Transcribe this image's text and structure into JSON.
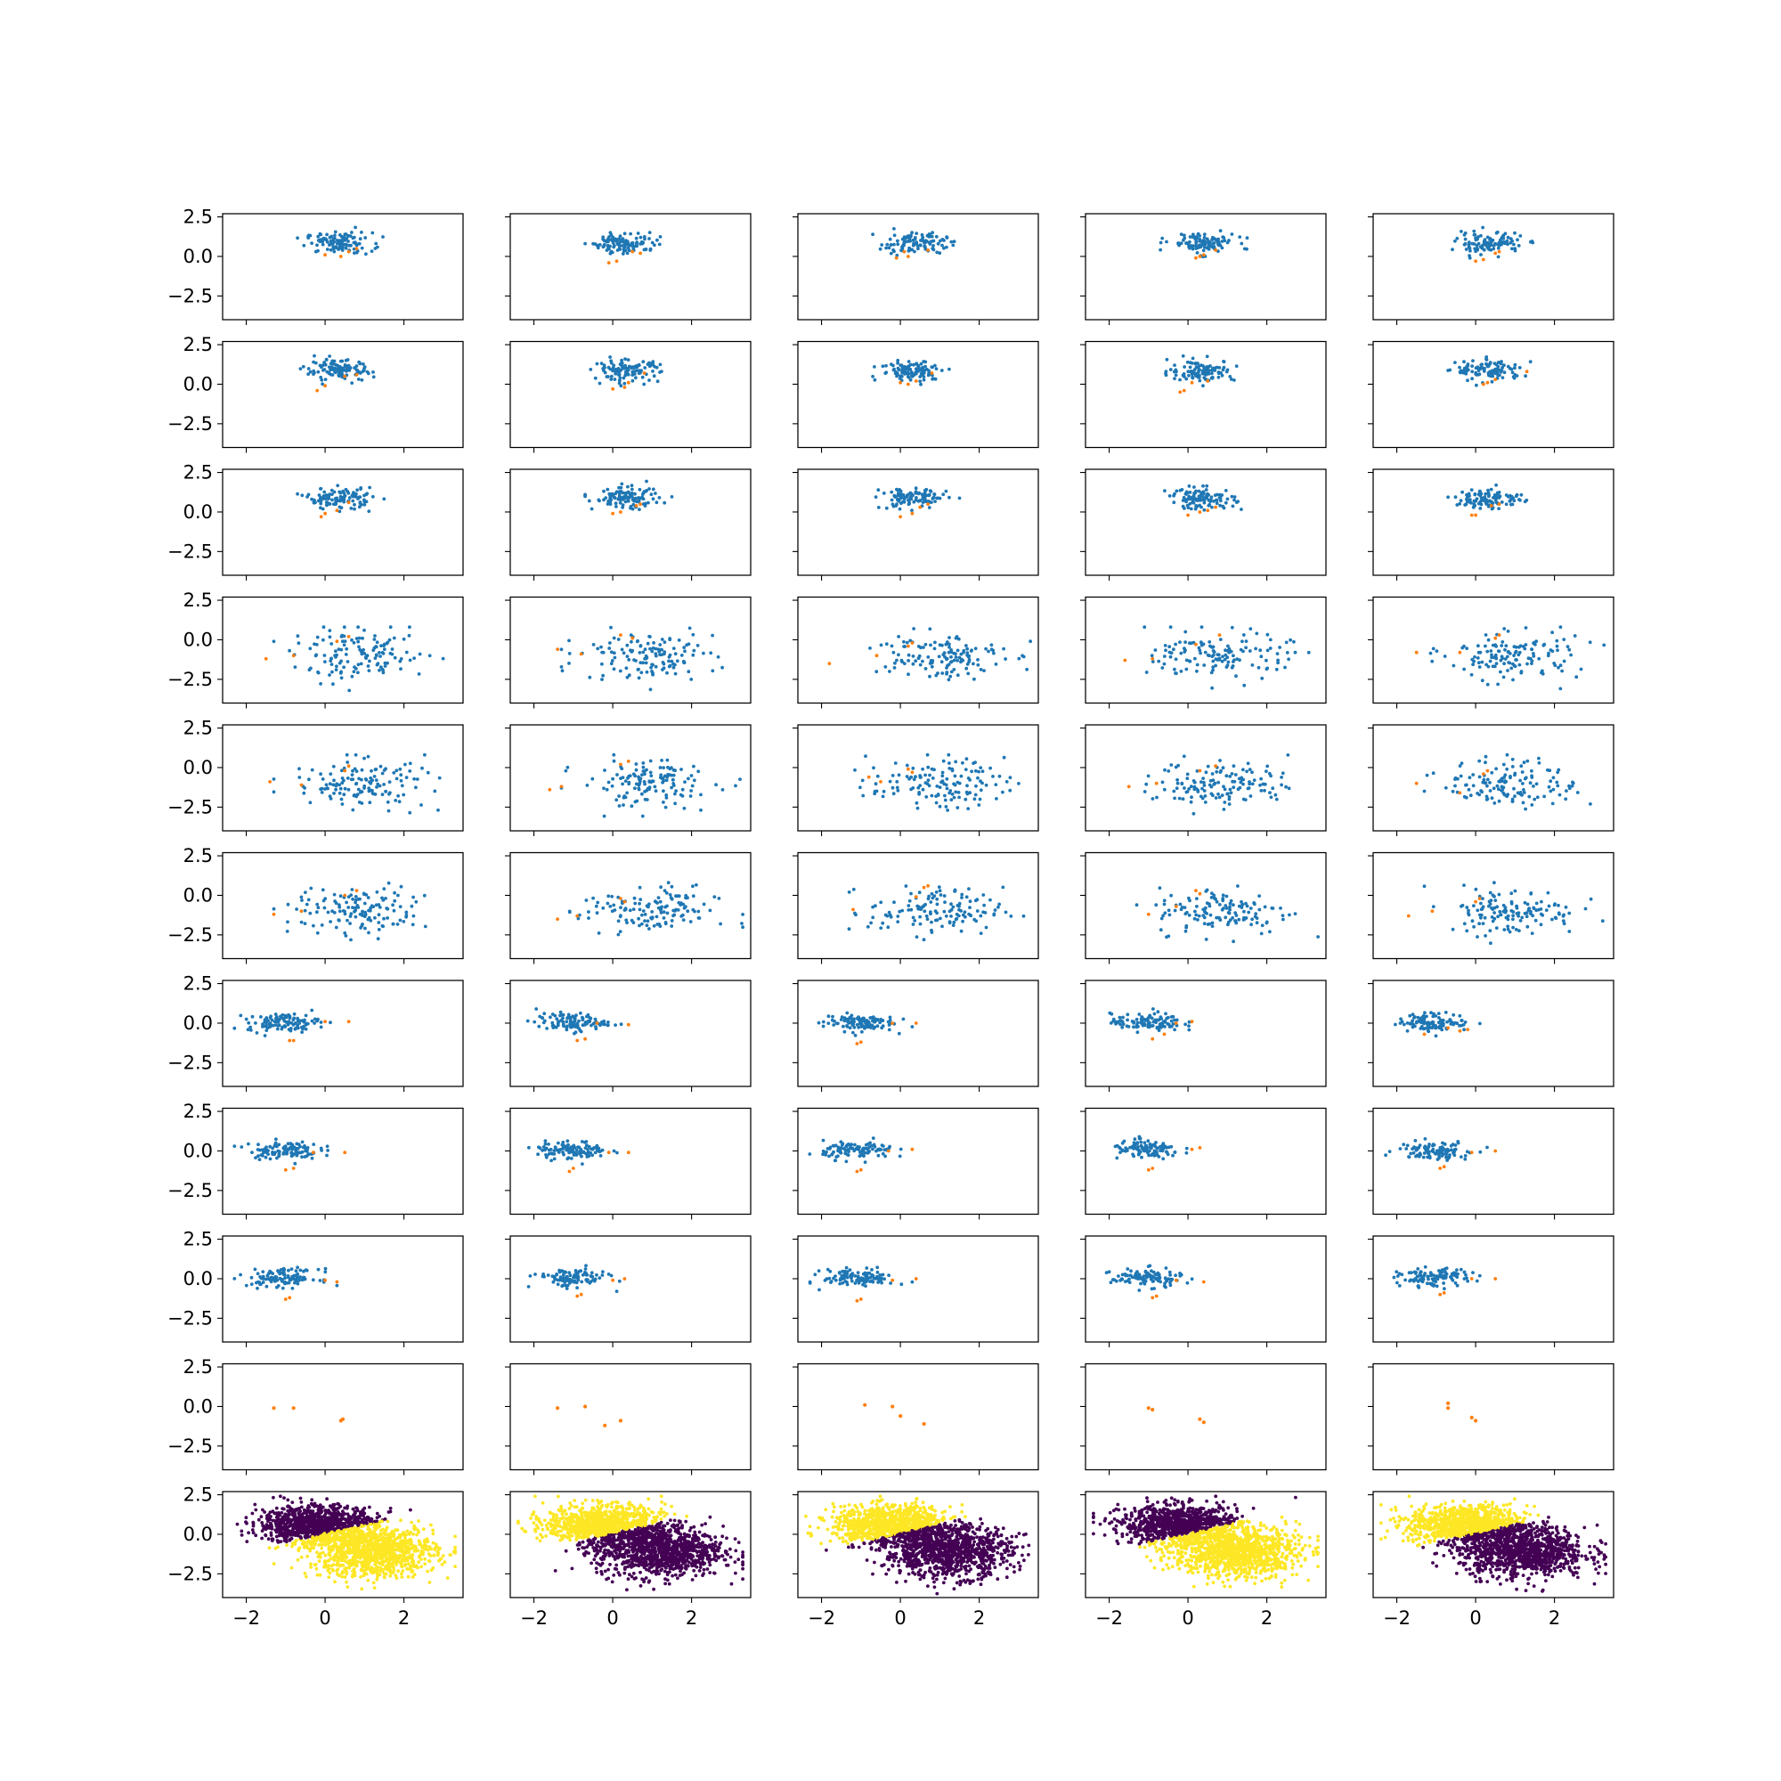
{
  "chart_data": {
    "type": "scatter",
    "layout": "grid 11 rows x 5 columns, shared x and y axes",
    "xlim": [
      -2.6,
      3.5
    ],
    "ylim": [
      -4.0,
      2.7
    ],
    "x_ticks": [
      -2,
      0,
      2
    ],
    "x_tick_labels": [
      "−2",
      "0",
      "2"
    ],
    "y_ticks": [
      2.5,
      0.0,
      -2.5
    ],
    "y_tick_labels": [
      "2.5",
      "0.0",
      "−2.5"
    ],
    "colors": {
      "main_points": "#1f77b4",
      "highlight_points": "#ff7f0e",
      "class_a": "#440154",
      "class_b": "#fde725",
      "frame": "#000000"
    },
    "row_groups": [
      {
        "rows": [
          1,
          2,
          3
        ],
        "description": "compact cluster",
        "cluster": {
          "center": [
            0.35,
            0.85
          ],
          "spread": [
            0.42,
            0.33
          ],
          "x_range": [
            -0.7,
            1.5
          ],
          "y_range": [
            -0.1,
            2.1
          ],
          "count": 110
        },
        "highlights_per_panel": [
          [
            [
              0.0,
              0.1
            ],
            [
              0.4,
              0.0
            ],
            [
              0.6,
              0.3
            ],
            [
              0.8,
              0.5
            ]
          ],
          [
            [
              -0.1,
              -0.4
            ],
            [
              0.1,
              -0.3
            ],
            [
              0.5,
              0.3
            ],
            [
              0.7,
              0.2
            ]
          ],
          [
            [
              -0.1,
              -0.1
            ],
            [
              0.1,
              0.3
            ],
            [
              0.7,
              0.4
            ],
            [
              0.2,
              0.0
            ]
          ],
          [
            [
              0.2,
              -0.1
            ],
            [
              0.4,
              0.1
            ],
            [
              0.7,
              0.4
            ],
            [
              0.3,
              0.0
            ]
          ],
          [
            [
              0.0,
              -0.3
            ],
            [
              0.2,
              -0.2
            ],
            [
              0.6,
              0.3
            ],
            [
              0.5,
              0.2
            ]
          ],
          [
            [
              -0.2,
              -0.4
            ],
            [
              0.0,
              -0.1
            ],
            [
              0.5,
              0.5
            ],
            [
              0.8,
              0.6
            ]
          ],
          [
            [
              0.0,
              -0.3
            ],
            [
              0.4,
              0.1
            ],
            [
              0.8,
              0.7
            ],
            [
              0.3,
              -0.2
            ]
          ],
          [
            [
              0.0,
              0.1
            ],
            [
              0.2,
              0.0
            ],
            [
              0.8,
              0.7
            ],
            [
              0.4,
              0.2
            ]
          ],
          [
            [
              -0.2,
              -0.5
            ],
            [
              -0.1,
              -0.4
            ],
            [
              0.5,
              0.2
            ],
            [
              0.1,
              0.1
            ]
          ],
          [
            [
              0.3,
              0.1
            ],
            [
              0.5,
              0.3
            ],
            [
              1.3,
              0.8
            ],
            [
              0.2,
              0.0
            ]
          ],
          [
            [
              -0.1,
              -0.3
            ],
            [
              0.0,
              -0.1
            ],
            [
              0.6,
              0.6
            ],
            [
              0.3,
              0.1
            ]
          ],
          [
            [
              0.0,
              -0.1
            ],
            [
              0.2,
              0.0
            ],
            [
              0.6,
              0.4
            ],
            [
              0.7,
              0.5
            ]
          ],
          [
            [
              0.0,
              -0.3
            ],
            [
              0.3,
              -0.1
            ],
            [
              0.7,
              0.5
            ],
            [
              0.5,
              0.3
            ]
          ],
          [
            [
              0.0,
              -0.2
            ],
            [
              0.3,
              0.0
            ],
            [
              0.7,
              0.3
            ],
            [
              0.5,
              0.1
            ]
          ],
          [
            [
              -0.1,
              -0.2
            ],
            [
              0.0,
              -0.2
            ],
            [
              0.6,
              0.5
            ],
            [
              0.4,
              0.4
            ]
          ]
        ]
      },
      {
        "rows": [
          4,
          5,
          6
        ],
        "description": "wide cluster",
        "cluster": {
          "center": [
            0.9,
            -1.0
          ],
          "spread": [
            0.85,
            0.75
          ],
          "x_range": [
            -1.3,
            3.3
          ],
          "y_range": [
            -3.9,
            0.8
          ],
          "count": 135
        },
        "highlights_per_panel": [
          [
            [
              -1.5,
              -1.2
            ],
            [
              -0.8,
              -1.0
            ],
            [
              0.6,
              0.2
            ],
            [
              0.3,
              -0.1
            ]
          ],
          [
            [
              -1.4,
              -0.6
            ],
            [
              -0.8,
              -0.9
            ],
            [
              0.5,
              0.1
            ],
            [
              0.2,
              0.3
            ]
          ],
          [
            [
              -1.8,
              -1.5
            ],
            [
              -0.6,
              -1.0
            ],
            [
              0.3,
              -0.2
            ],
            [
              0.2,
              -0.4
            ]
          ],
          [
            [
              -1.6,
              -1.3
            ],
            [
              -0.9,
              -1.2
            ],
            [
              0.8,
              0.3
            ],
            [
              0.2,
              -0.3
            ]
          ],
          [
            [
              -1.5,
              -0.8
            ],
            [
              -0.4,
              -0.8
            ],
            [
              0.5,
              0.1
            ],
            [
              0.6,
              0.3
            ]
          ],
          [
            [
              -1.4,
              -0.9
            ],
            [
              -0.6,
              -1.1
            ],
            [
              0.6,
              0.1
            ],
            [
              0.5,
              -0.2
            ]
          ],
          [
            [
              -1.6,
              -1.4
            ],
            [
              -1.3,
              -1.2
            ],
            [
              0.2,
              0.2
            ],
            [
              0.4,
              0.4
            ]
          ],
          [
            [
              -0.8,
              -0.6
            ],
            [
              -0.5,
              -0.9
            ],
            [
              0.3,
              -0.3
            ],
            [
              0.2,
              -0.1
            ]
          ],
          [
            [
              -1.5,
              -1.2
            ],
            [
              -0.8,
              -1.0
            ],
            [
              0.3,
              -0.2
            ],
            [
              0.7,
              0.1
            ]
          ],
          [
            [
              -1.5,
              -1.0
            ],
            [
              -0.4,
              -1.6
            ],
            [
              0.2,
              -0.4
            ],
            [
              0.3,
              -0.2
            ]
          ],
          [
            [
              -1.3,
              -1.2
            ],
            [
              -0.6,
              -1.0
            ],
            [
              0.8,
              0.3
            ],
            [
              0.5,
              0.0
            ]
          ],
          [
            [
              -1.4,
              -1.5
            ],
            [
              -0.9,
              -1.3
            ],
            [
              0.3,
              -0.4
            ],
            [
              0.2,
              -0.2
            ]
          ],
          [
            [
              -1.2,
              -0.9
            ],
            [
              0.6,
              0.5
            ],
            [
              0.7,
              0.6
            ],
            [
              0.4,
              -0.1
            ]
          ],
          [
            [
              -1.0,
              -1.2
            ],
            [
              -0.3,
              -0.7
            ],
            [
              0.2,
              0.3
            ],
            [
              0.3,
              0.1
            ]
          ],
          [
            [
              -1.7,
              -1.3
            ],
            [
              -1.1,
              -1.0
            ],
            [
              0.0,
              -0.4
            ],
            [
              0.1,
              -0.2
            ]
          ]
        ]
      },
      {
        "rows": [
          7,
          8,
          9
        ],
        "description": "left cluster",
        "cluster": {
          "center": [
            -1.05,
            0.05
          ],
          "spread": [
            0.45,
            0.28
          ],
          "x_range": [
            -2.3,
            0.3
          ],
          "y_range": [
            -1.3,
            0.9
          ],
          "count": 110
        },
        "highlights_per_panel": [
          [
            [
              0.0,
              0.1
            ],
            [
              0.6,
              0.1
            ],
            [
              -0.9,
              -1.1
            ],
            [
              -0.8,
              -1.1
            ]
          ],
          [
            [
              -0.4,
              0.0
            ],
            [
              0.4,
              -0.1
            ],
            [
              -0.9,
              -1.1
            ],
            [
              -0.7,
              -1.0
            ]
          ],
          [
            [
              -0.2,
              0.0
            ],
            [
              0.4,
              0.0
            ],
            [
              -1.1,
              -1.3
            ],
            [
              -1.0,
              -1.2
            ]
          ],
          [
            [
              -0.3,
              0.0
            ],
            [
              0.1,
              0.1
            ],
            [
              -0.9,
              -1.0
            ],
            [
              -0.6,
              -0.7
            ]
          ],
          [
            [
              -0.7,
              -0.3
            ],
            [
              -0.2,
              -0.4
            ],
            [
              -1.3,
              -0.7
            ],
            [
              -0.4,
              -0.5
            ]
          ],
          [
            [
              -0.3,
              -0.1
            ],
            [
              0.5,
              -0.1
            ],
            [
              -1.0,
              -1.2
            ],
            [
              -0.8,
              -1.1
            ]
          ],
          [
            [
              -0.1,
              -0.1
            ],
            [
              0.4,
              -0.1
            ],
            [
              -1.1,
              -1.3
            ],
            [
              -1.0,
              -1.1
            ]
          ],
          [
            [
              -0.3,
              0.0
            ],
            [
              0.3,
              0.1
            ],
            [
              -1.1,
              -1.3
            ],
            [
              -1.0,
              -1.2
            ]
          ],
          [
            [
              0.1,
              0.1
            ],
            [
              0.3,
              0.2
            ],
            [
              -1.0,
              -1.2
            ],
            [
              -0.9,
              -1.1
            ]
          ],
          [
            [
              -0.1,
              -0.1
            ],
            [
              0.5,
              0.0
            ],
            [
              -0.9,
              -1.1
            ],
            [
              -0.8,
              -1.0
            ]
          ],
          [
            [
              0.0,
              -0.1
            ],
            [
              0.3,
              -0.2
            ],
            [
              -1.0,
              -1.3
            ],
            [
              -0.9,
              -1.2
            ]
          ],
          [
            [
              0.0,
              -0.1
            ],
            [
              0.3,
              0.0
            ],
            [
              -0.9,
              -1.1
            ],
            [
              -0.8,
              -1.0
            ]
          ],
          [
            [
              -0.2,
              -0.1
            ],
            [
              0.4,
              0.0
            ],
            [
              -1.1,
              -1.4
            ],
            [
              -1.0,
              -1.3
            ]
          ],
          [
            [
              -0.3,
              -0.1
            ],
            [
              0.4,
              -0.2
            ],
            [
              -0.9,
              -1.2
            ],
            [
              -0.8,
              -1.1
            ]
          ],
          [
            [
              -0.1,
              0.0
            ],
            [
              0.5,
              0.0
            ],
            [
              -0.9,
              -1.0
            ],
            [
              -0.8,
              -0.9
            ]
          ]
        ]
      }
    ],
    "row_10_highlights_only": [
      [
        [
          -1.3,
          -0.1
        ],
        [
          -0.8,
          -0.1
        ],
        [
          0.4,
          -0.9
        ],
        [
          0.45,
          -0.8
        ]
      ],
      [
        [
          -1.4,
          -0.1
        ],
        [
          -0.7,
          0.0
        ],
        [
          -0.2,
          -1.2
        ],
        [
          0.2,
          -0.9
        ]
      ],
      [
        [
          -0.9,
          0.1
        ],
        [
          -0.2,
          0.0
        ],
        [
          0.0,
          -0.6
        ],
        [
          0.6,
          -1.1
        ]
      ],
      [
        [
          -1.0,
          -0.1
        ],
        [
          -0.9,
          -0.2
        ],
        [
          0.3,
          -0.8
        ],
        [
          0.4,
          -1.0
        ]
      ],
      [
        [
          -0.7,
          0.2
        ],
        [
          -0.7,
          -0.1
        ],
        [
          -0.1,
          -0.7
        ],
        [
          0.0,
          -0.9
        ]
      ]
    ],
    "row_11_classified": {
      "description": "two classes split by a boundary line",
      "boundary": [
        [
          -2.4,
          -1.3
        ],
        [
          2.0,
          1.2
        ]
      ],
      "region_above_color_per_panel": [
        "class_a",
        "class_b",
        "class_b",
        "class_a",
        "class_b"
      ],
      "region_below_color_per_panel": [
        "class_b",
        "class_a",
        "class_a",
        "class_b",
        "class_a"
      ],
      "upper_cloud": {
        "center": [
          -0.2,
          0.6
        ],
        "spread": [
          0.75,
          0.6
        ],
        "count": 1000
      },
      "lower_cloud": {
        "center": [
          1.2,
          -1.1
        ],
        "spread": [
          0.8,
          0.8
        ],
        "count": 1000
      }
    }
  }
}
